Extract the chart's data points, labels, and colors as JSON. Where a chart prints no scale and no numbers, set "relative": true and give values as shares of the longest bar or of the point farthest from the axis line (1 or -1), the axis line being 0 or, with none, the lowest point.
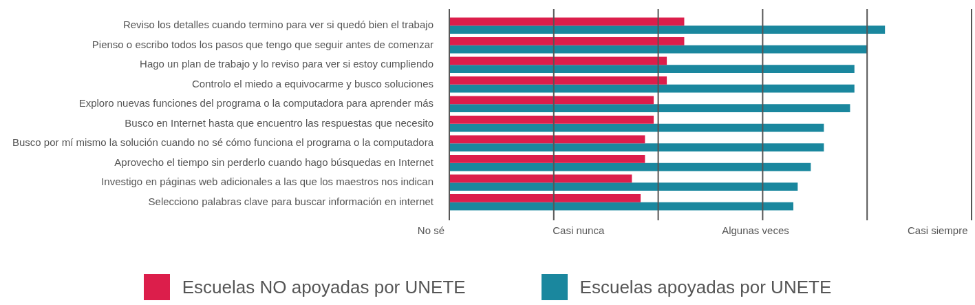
{
  "chart_data": {
    "type": "bar",
    "orientation": "horizontal",
    "relative": true,
    "categories": [
      "Reviso los detalles cuando termino para ver si quedó bien el trabajo",
      "Pienso o escribo todos los pasos que tengo que seguir antes de comenzar",
      "Hago un plan de trabajo y lo reviso para ver si estoy cumpliendo",
      "Controlo el miedo a equivocarme y busco soluciones",
      "Exploro nuevas funciones del programa o la computadora para aprender más",
      "Busco en Internet hasta que encuentro las respuestas que necesito",
      "Busco por mí mismo la solución cuando no sé cómo funciona el programa o la computadora",
      "Aprovecho el tiempo sin perderlo cuando hago búsquedas en Internet",
      "Investigo en páginas web adicionales a las que los maestros nos indican",
      "Selecciono palabras clave para buscar información en internet"
    ],
    "series": [
      {
        "name": "Escuelas NO apoyadas por UNETE",
        "color": "#dc1e4b",
        "values": [
          0.54,
          0.54,
          0.5,
          0.5,
          0.47,
          0.47,
          0.45,
          0.45,
          0.42,
          0.44
        ]
      },
      {
        "name": "Escuelas apoyadas por UNETE",
        "color": "#1a879e",
        "values": [
          1,
          0.96,
          0.93,
          0.93,
          0.92,
          0.86,
          0.86,
          0.83,
          0.8,
          0.79
        ]
      }
    ],
    "annotations": [
      "No sé",
      "Casi nunca",
      "Algunas veces",
      "Casi siempre"
    ],
    "grid": "x",
    "legend": "bottom"
  }
}
